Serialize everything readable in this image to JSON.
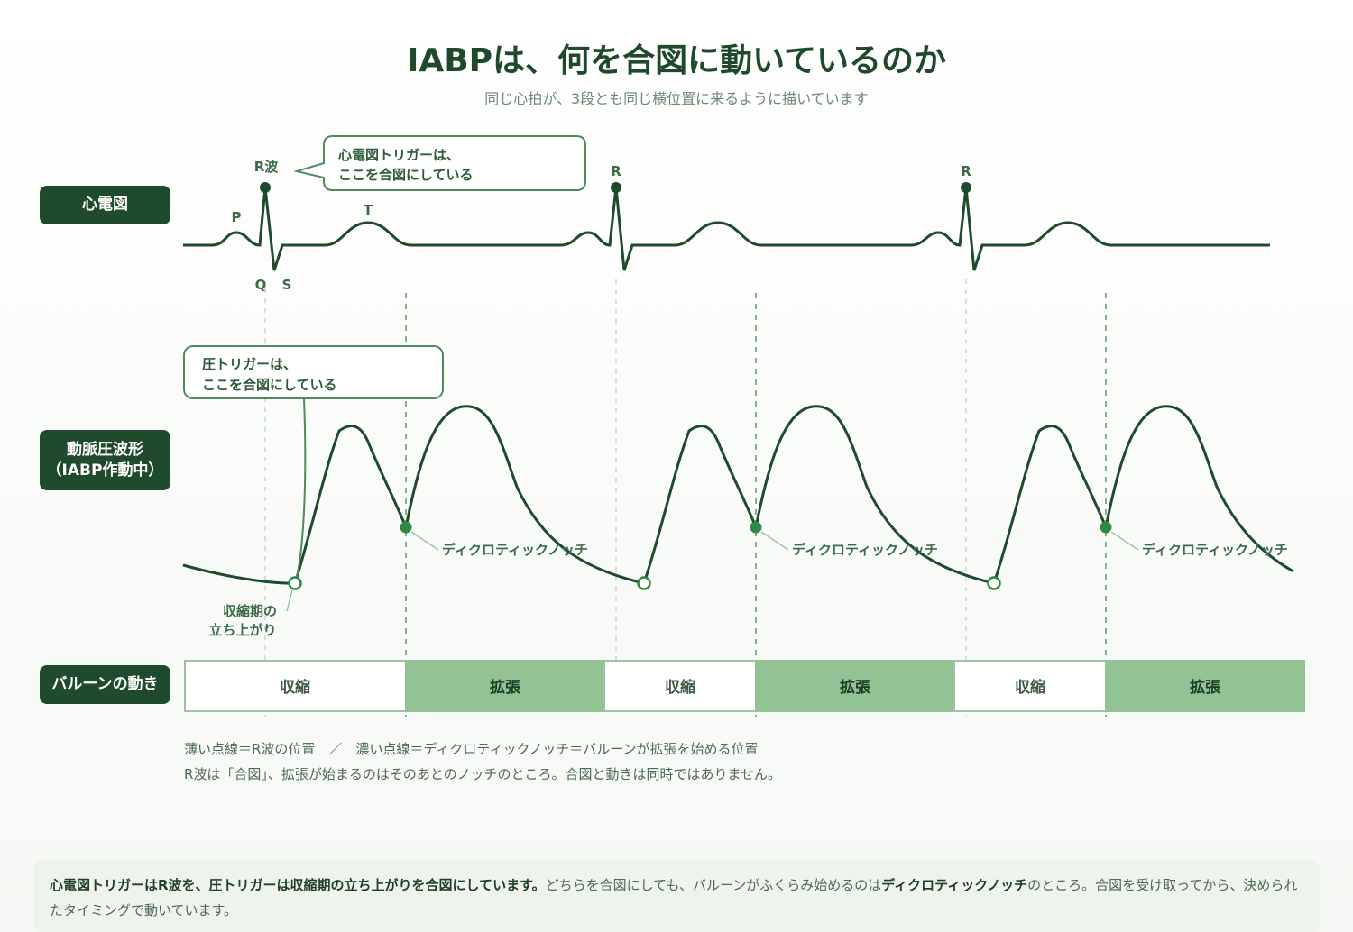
{
  "title": "IABPは、何を合図に動いているのか",
  "subtitle": "同じ心拍が、3段とも同じ横位置に来るように描いています",
  "rows": {
    "ecg": "心電図",
    "arterial_line1": "動脈圧波形",
    "arterial_line2": "（IABP作動中）",
    "balloon": "バルーンの動き"
  },
  "ecg_labels": {
    "r_wave": "R波",
    "r": "R",
    "p": "P",
    "t": "T",
    "q": "Q",
    "s": "S"
  },
  "callouts": {
    "ecg_trigger_line1": "心電図トリガーは、",
    "ecg_trigger_line2": "ここを合図にしている",
    "pressure_trigger_line1": "圧トリガーは、",
    "pressure_trigger_line2": "ここを合図にしている"
  },
  "pressure_labels": {
    "dicrotic_notch": "ディクロティックノッチ",
    "systolic_upstroke_line1": "収縮期の",
    "systolic_upstroke_line2": "立ち上がり"
  },
  "balloon_segments": [
    "収縮",
    "拡張",
    "収縮",
    "拡張",
    "収縮",
    "拡張"
  ],
  "legend": {
    "line1": "薄い点線＝R波の位置　／　濃い点線＝ディクロティックノッチ＝バルーンが拡張を始める位置",
    "line2": "R波は「合図」、拡張が始まるのはそのあとのノッチのところ。合図と動きは同時ではありません。"
  },
  "summary": {
    "bold1": "心電図トリガーはR波を、圧トリガーは収縮期の立ち上がりを合図にしています。",
    "text1": "どちらを合図にしても、バルーンがふくらみ始めるのは",
    "bold2": "ディクロティックノッチ",
    "text2": "のところ。合図を受け取ってから、決められたタイミングで動いています。"
  },
  "colors": {
    "dark_green": "#1f4a2c",
    "balloon_inflate": "#93c394",
    "accent_green": "#2f8a45"
  }
}
